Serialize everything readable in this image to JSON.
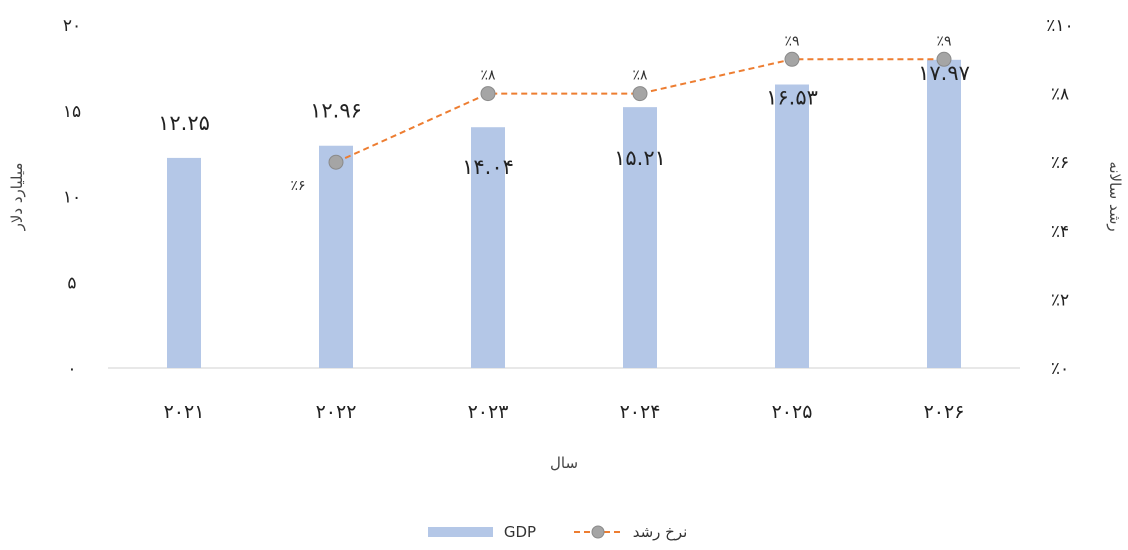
{
  "chart_data": {
    "type": "bar",
    "categories": [
      "۲۰۲۱",
      "۲۰۲۲",
      "۲۰۲۳",
      "۲۰۲۴",
      "۲۰۲۵",
      "۲۰۲۶"
    ],
    "series": [
      {
        "name": "GDP",
        "type": "bar",
        "axis": "left",
        "color": "#b4c7e7",
        "values": [
          12.25,
          12.96,
          14.04,
          15.21,
          16.53,
          17.97
        ],
        "labels": [
          "۱۲.۲۵",
          "۱۲.۹۶",
          "۱۴.۰۴",
          "۱۵.۲۱",
          "۱۶.۵۳",
          "۱۷.۹۷"
        ]
      },
      {
        "name": "نرخ رشد",
        "type": "line",
        "axis": "right",
        "color": "#ed7d31",
        "marker_color": "#a5a5a5",
        "values": [
          null,
          6,
          8,
          8,
          9,
          9
        ],
        "labels": [
          null,
          "٪۶",
          "٪۸",
          "٪۸",
          "٪۹",
          "٪۹"
        ]
      }
    ],
    "xlabel": "سال",
    "ylabel": "میلیارد دلار",
    "y2label": "رشد سالانه",
    "ylim": [
      0,
      20
    ],
    "y2lim": [
      0,
      10
    ],
    "yticks": [
      0,
      5,
      10,
      15,
      20
    ],
    "ytick_labels": [
      "۰",
      "۵",
      "۱۰",
      "۱۵",
      "۲۰"
    ],
    "y2ticks": [
      0,
      2,
      4,
      6,
      8,
      10
    ],
    "y2tick_labels": [
      "٪۰",
      "٪۲",
      "٪۴",
      "٪۶",
      "٪۸",
      "٪۱۰"
    ],
    "grid": false,
    "legend": "bottom-center"
  }
}
